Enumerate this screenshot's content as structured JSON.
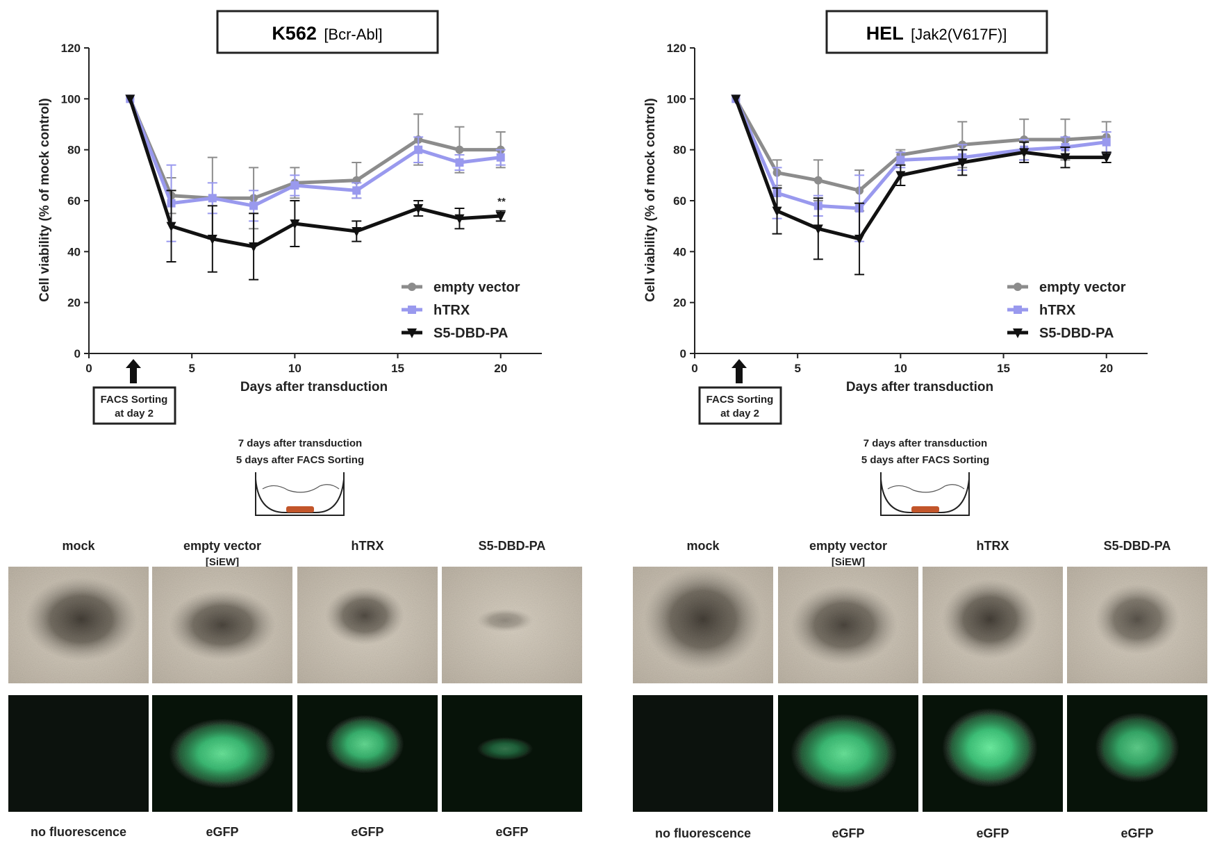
{
  "chart_data": [
    {
      "type": "line",
      "title": "K562",
      "subtitle": "[Bcr-Abl]",
      "xlabel": "Days after transduction",
      "ylabel": "Cell viability (% of mock control)",
      "xlim": [
        0,
        22
      ],
      "ylim": [
        0,
        120
      ],
      "xticks": [
        0,
        5,
        10,
        15,
        20
      ],
      "yticks": [
        0,
        20,
        40,
        60,
        80,
        100,
        120
      ],
      "x": [
        2,
        4,
        6,
        8,
        10,
        13,
        16,
        18,
        20
      ],
      "series": [
        {
          "name": "empty vector",
          "color": "#8c8c8c",
          "marker": "circle",
          "values": [
            100,
            62,
            61,
            61,
            67,
            68,
            84,
            80,
            80
          ],
          "errors": [
            0,
            7,
            16,
            12,
            6,
            7,
            10,
            9,
            7
          ]
        },
        {
          "name": "hTRX",
          "color": "#9999ee",
          "marker": "square",
          "values": [
            100,
            59,
            61,
            58,
            66,
            64,
            80,
            75,
            77
          ],
          "errors": [
            0,
            15,
            6,
            6,
            4,
            3,
            5,
            3,
            3
          ]
        },
        {
          "name": "S5-DBD-PA",
          "color": "#111111",
          "marker": "triangle-down",
          "values": [
            100,
            50,
            45,
            42,
            51,
            48,
            57,
            53,
            54
          ],
          "errors": [
            0,
            14,
            13,
            13,
            9,
            4,
            3,
            4,
            2
          ]
        }
      ],
      "annotation": "**",
      "legend": "bottom-right",
      "arrow_label_1": "FACS Sorting",
      "arrow_label_2": "at day 2"
    },
    {
      "type": "line",
      "title": "HEL",
      "subtitle": "[Jak2(V617F)]",
      "xlabel": "Days after transduction",
      "ylabel": "Cell viability (% of mock control)",
      "xlim": [
        0,
        22
      ],
      "ylim": [
        0,
        120
      ],
      "xticks": [
        0,
        5,
        10,
        15,
        20
      ],
      "yticks": [
        0,
        20,
        40,
        60,
        80,
        100,
        120
      ],
      "x": [
        2,
        4,
        6,
        8,
        10,
        13,
        16,
        18,
        20
      ],
      "series": [
        {
          "name": "empty vector",
          "color": "#8c8c8c",
          "marker": "circle",
          "values": [
            100,
            71,
            68,
            64,
            78,
            82,
            84,
            84,
            85
          ],
          "errors": [
            0,
            5,
            8,
            8,
            2,
            9,
            8,
            8,
            6
          ]
        },
        {
          "name": "hTRX",
          "color": "#9999ee",
          "marker": "square",
          "values": [
            100,
            63,
            58,
            57,
            76,
            77,
            80,
            81,
            83
          ],
          "errors": [
            0,
            10,
            4,
            13,
            3,
            5,
            4,
            4,
            4
          ]
        },
        {
          "name": "S5-DBD-PA",
          "color": "#111111",
          "marker": "triangle-down",
          "values": [
            100,
            56,
            49,
            45,
            70,
            75,
            79,
            77,
            77
          ],
          "errors": [
            0,
            9,
            12,
            14,
            4,
            5,
            4,
            4,
            2
          ]
        }
      ],
      "legend": "bottom-right",
      "arrow_label_1": "FACS Sorting",
      "arrow_label_2": "at day 2"
    }
  ],
  "schematic": {
    "line1": "7 days after transduction",
    "line2": "5 days after FACS Sorting"
  },
  "microscopy": {
    "columns": [
      {
        "label": "mock",
        "sublabel": "",
        "fluor_label": "no fluorescence"
      },
      {
        "label": "empty vector",
        "sublabel": "[SiEW]",
        "fluor_label": "eGFP"
      },
      {
        "label": "hTRX",
        "sublabel": "",
        "fluor_label": "eGFP"
      },
      {
        "label": "S5-DBD-PA",
        "sublabel": "",
        "fluor_label": "eGFP"
      }
    ]
  }
}
